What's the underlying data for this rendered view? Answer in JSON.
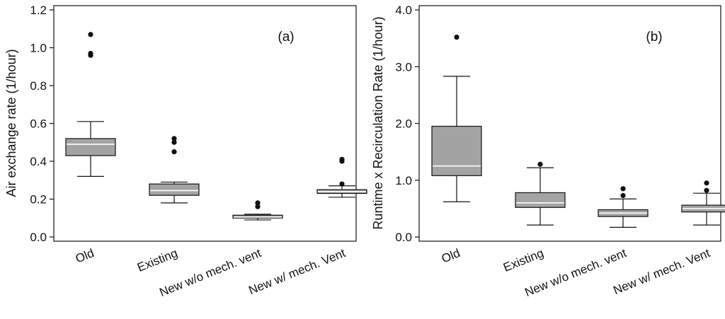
{
  "chart_data": [
    {
      "type": "box",
      "panel_label": "(a)",
      "ylabel": "Air exchange rate (1/hour)",
      "xlabel": "",
      "ylim": [
        0,
        1.2
      ],
      "yticks": [
        "0.0",
        "0.2",
        "0.4",
        "0.6",
        "0.8",
        "1.0",
        "1.2"
      ],
      "categories": [
        "Old",
        "Existing",
        "New w/o mech. vent",
        "New w/ mech. Vent"
      ],
      "boxes": [
        {
          "whisker_low": 0.32,
          "q1": 0.43,
          "median": 0.49,
          "q3": 0.52,
          "whisker_high": 0.61,
          "outliers": [
            0.96,
            0.97,
            1.07
          ]
        },
        {
          "whisker_low": 0.18,
          "q1": 0.22,
          "median": 0.245,
          "q3": 0.28,
          "whisker_high": 0.29,
          "outliers": [
            0.45,
            0.5,
            0.52
          ]
        },
        {
          "whisker_low": 0.09,
          "q1": 0.1,
          "median": 0.105,
          "q3": 0.115,
          "whisker_high": 0.12,
          "outliers": [
            0.16,
            0.18
          ]
        },
        {
          "whisker_low": 0.21,
          "q1": 0.23,
          "median": 0.24,
          "q3": 0.25,
          "whisker_high": 0.27,
          "outliers": [
            0.28,
            0.4,
            0.41
          ]
        }
      ]
    },
    {
      "type": "box",
      "panel_label": "(b)",
      "ylabel": "Runtime x Recirculation Rate (1/hour)",
      "xlabel": "",
      "ylim": [
        0,
        4.0
      ],
      "yticks": [
        "0.0",
        "1.0",
        "2.0",
        "3.0",
        "4.0"
      ],
      "categories": [
        "Old",
        "Existing",
        "New w/o mech. vent",
        "New w/ mech. Vent"
      ],
      "boxes": [
        {
          "whisker_low": 0.62,
          "q1": 1.08,
          "median": 1.25,
          "q3": 1.95,
          "whisker_high": 2.83,
          "outliers": [
            3.52
          ]
        },
        {
          "whisker_low": 0.21,
          "q1": 0.52,
          "median": 0.6,
          "q3": 0.78,
          "whisker_high": 1.22,
          "outliers": [
            1.28
          ]
        },
        {
          "whisker_low": 0.17,
          "q1": 0.36,
          "median": 0.42,
          "q3": 0.48,
          "whisker_high": 0.67,
          "outliers": [
            0.73,
            0.85
          ]
        },
        {
          "whisker_low": 0.21,
          "q1": 0.44,
          "median": 0.5,
          "q3": 0.56,
          "whisker_high": 0.77,
          "outliers": [
            0.82,
            0.95
          ]
        }
      ]
    }
  ],
  "colors": {
    "box_fill": "#a3a3a3",
    "median_line": "#ffffff",
    "ink": "#111111"
  }
}
